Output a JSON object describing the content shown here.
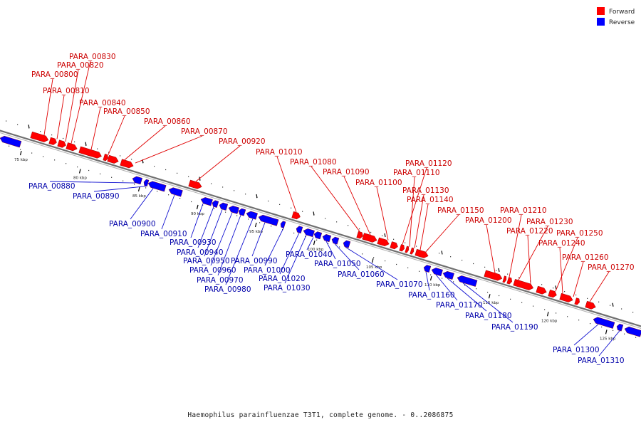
{
  "caption": "Haemophilus parainfluenzae T3T1, complete genome. - 0..2086875",
  "legend": [
    {
      "label": "Forward",
      "color": "#ff0000"
    },
    {
      "label": "Reverse",
      "color": "#0000ff"
    }
  ],
  "colors": {
    "forward": "#ff0000",
    "reverse": "#0000ff",
    "forward_label": "#cc0000",
    "reverse_label": "#0000aa",
    "backbone": "#707070"
  },
  "kbp_ticks": [
    "75 kbp",
    "80 kbp",
    "85 kbp",
    "90 kbp",
    "95 kbp",
    "100 kbp",
    "105 kbp",
    "110 kbp",
    "115 kbp",
    "120 kbp",
    "125 kbp"
  ],
  "forward_genes": [
    "PARA_00830",
    "PARA_00820",
    "PARA_00800",
    "PARA_00810",
    "PARA_00840",
    "PARA_00850",
    "PARA_00860",
    "PARA_00870",
    "PARA_00920",
    "PARA_01010",
    "PARA_01080",
    "PARA_01090",
    "PARA_01100",
    "PARA_01120",
    "PARA_01110",
    "PARA_01130",
    "PARA_01140",
    "PARA_01150",
    "PARA_01200",
    "PARA_01210",
    "PARA_01230",
    "PARA_01220",
    "PARA_01250",
    "PARA_01240",
    "PARA_01260",
    "PARA_01270"
  ],
  "reverse_genes": [
    "PARA_00880",
    "PARA_00890",
    "PARA_00900",
    "PARA_00910",
    "PARA_00930",
    "PARA_00940",
    "PARA_00950",
    "PARA_00960",
    "PARA_00970",
    "PARA_00980",
    "PARA_00990",
    "PARA_01000",
    "PARA_01020",
    "PARA_01030",
    "PARA_01040",
    "PARA_01050",
    "PARA_01060",
    "PARA_01070",
    "PARA_01160",
    "PARA_01170",
    "PARA_01180",
    "PARA_01190",
    "PARA_01300",
    "PARA_01310"
  ]
}
